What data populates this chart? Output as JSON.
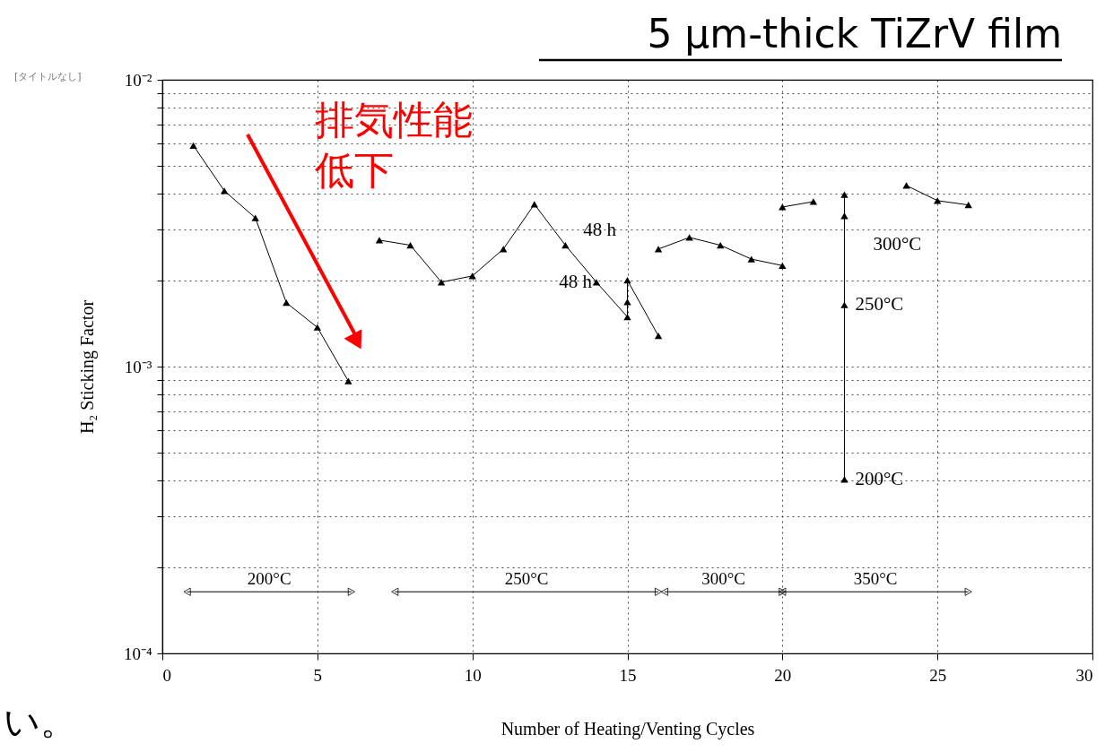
{
  "chart_data": {
    "type": "line",
    "title": "5 μm-thick TiZrV film",
    "xlabel": "Number of Heating/Venting Cycles",
    "ylabel": "H₂ Sticking Factor",
    "log": "y",
    "grid": true,
    "marker": "triangle",
    "line_style": "solid",
    "xlim": [
      0,
      30
    ],
    "xticks": [
      0,
      5,
      10,
      15,
      20,
      25,
      30
    ],
    "ylim": [
      0.0001,
      0.01
    ],
    "yticks": [
      {
        "value": 0.0001,
        "label": "10⁻⁴"
      },
      {
        "value": 0.0002,
        "label": null
      },
      {
        "value": 0.0003,
        "label": null
      },
      {
        "value": 0.0004,
        "label": null
      },
      {
        "value": 0.0005,
        "label": null
      },
      {
        "value": 0.0006,
        "label": null
      },
      {
        "value": 0.0007,
        "label": null
      },
      {
        "value": 0.0008,
        "label": null
      },
      {
        "value": 0.0009,
        "label": null
      },
      {
        "value": 0.001,
        "label": "10⁻³"
      },
      {
        "value": 0.002,
        "label": null
      },
      {
        "value": 0.003,
        "label": null
      },
      {
        "value": 0.004,
        "label": null
      },
      {
        "value": 0.005,
        "label": null
      },
      {
        "value": 0.006,
        "label": null
      },
      {
        "value": 0.007,
        "label": null
      },
      {
        "value": 0.008,
        "label": null
      },
      {
        "value": 0.009,
        "label": null
      },
      {
        "value": 0.01,
        "label": "10⁻²"
      }
    ],
    "series": [
      {
        "color": "#000000",
        "x": [
          1,
          2,
          3,
          4,
          5,
          6
        ],
        "values": [
          0.0059,
          0.0041,
          0.0033,
          0.00167,
          0.00137,
          0.00089
        ]
      },
      {
        "color": "#000000",
        "x": [
          7,
          8,
          9,
          10,
          11,
          12,
          13,
          14,
          15,
          15,
          15,
          16
        ],
        "values": [
          0.00276,
          0.00265,
          0.00197,
          0.00207,
          0.00257,
          0.00368,
          0.00265,
          0.00197,
          0.00149,
          0.00168,
          0.002,
          0.00128
        ]
      },
      {
        "color": "#000000",
        "x": [
          16,
          17,
          18,
          19,
          20
        ],
        "values": [
          0.00257,
          0.00282,
          0.00265,
          0.00237,
          0.00225
        ]
      },
      {
        "color": "#000000",
        "x": [
          20,
          21
        ],
        "values": [
          0.0036,
          0.00376
        ]
      },
      {
        "color": "#000000",
        "x": [
          22,
          22,
          22,
          22
        ],
        "values": [
          0.000404,
          0.00164,
          0.00335,
          0.00398
        ]
      },
      {
        "color": "#000000",
        "x": [
          24,
          25,
          26
        ],
        "values": [
          0.00428,
          0.00379,
          0.00366
        ]
      },
      {
        "type": "line",
        "marker": "triangle",
        "name": "200°C",
        "color": "#000000",
        "x": [
          0.8,
          6.1
        ],
        "values": [
          0.000164,
          0.000164
        ]
      },
      {
        "type": "line",
        "marker": "triangle",
        "name": "250°C",
        "color": "#000000",
        "x": [
          7.5,
          16.0
        ],
        "values": [
          0.000164,
          0.000164
        ]
      },
      {
        "type": "line",
        "marker": "triangle",
        "name": "300°C",
        "color": "#000000",
        "x": [
          16.2,
          20.0
        ],
        "values": [
          0.000164,
          0.000164
        ]
      },
      {
        "type": "line",
        "marker": "triangle",
        "name": "350°C",
        "color": "#000000",
        "x": [
          20.0,
          26.0
        ],
        "values": [
          0.000164,
          0.000164
        ]
      }
    ],
    "annotations": [
      {
        "text": "48 h",
        "x": 13,
        "y": 0.00265
      },
      {
        "text": "48 h",
        "x": 14,
        "y": 0.00197
      },
      {
        "text": "300°C",
        "x": 22,
        "y": 0.00335
      },
      {
        "text": "250°C",
        "x": 22,
        "y": 0.00164
      },
      {
        "text": "200°C",
        "x": 22,
        "y": 0.000404
      },
      "排気性能",
      "低下",
      "[タイトルなし]",
      "い。"
    ]
  }
}
